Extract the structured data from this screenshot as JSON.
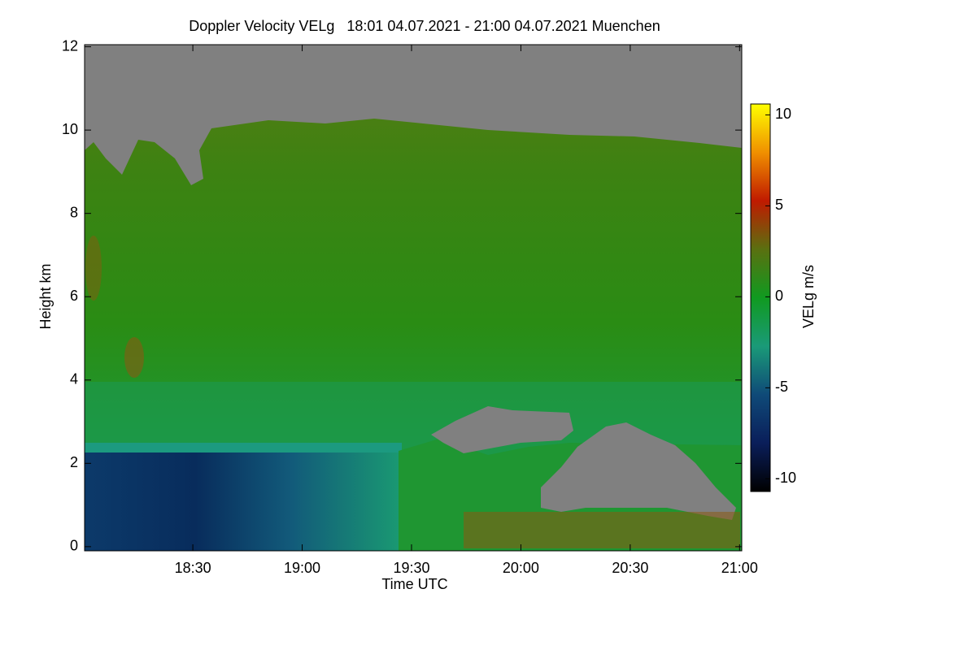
{
  "chart_data": {
    "type": "heatmap",
    "title": "Doppler Velocity VELg   18:01 04.07.2021 - 21:00 04.07.2021 Muenchen",
    "x_label": "Time UTC",
    "y_label": "Height km",
    "colorbar_label": "VELg m/s",
    "xlim": [
      18.005,
      21.01
    ],
    "xticks": [
      {
        "value": 18.5,
        "label": "18:30"
      },
      {
        "value": 19.0,
        "label": "19:00"
      },
      {
        "value": 19.5,
        "label": "19:30"
      },
      {
        "value": 20.0,
        "label": "20:00"
      },
      {
        "value": 20.5,
        "label": "20:30"
      },
      {
        "value": 21.0,
        "label": "21:00"
      }
    ],
    "ylim": [
      -0.1,
      12.05
    ],
    "yticks": [
      0,
      2,
      4,
      6,
      8,
      10,
      12
    ],
    "clim": [
      -10.7,
      10.6
    ],
    "cticks": [
      -10,
      -5,
      0,
      5,
      10
    ],
    "colormap": [
      "#000000",
      "#0a1e5a",
      "#0f4a78",
      "#1a9a78",
      "#109a20",
      "#5a7010",
      "#c01a00",
      "#f09000",
      "#ffff00"
    ]
  }
}
